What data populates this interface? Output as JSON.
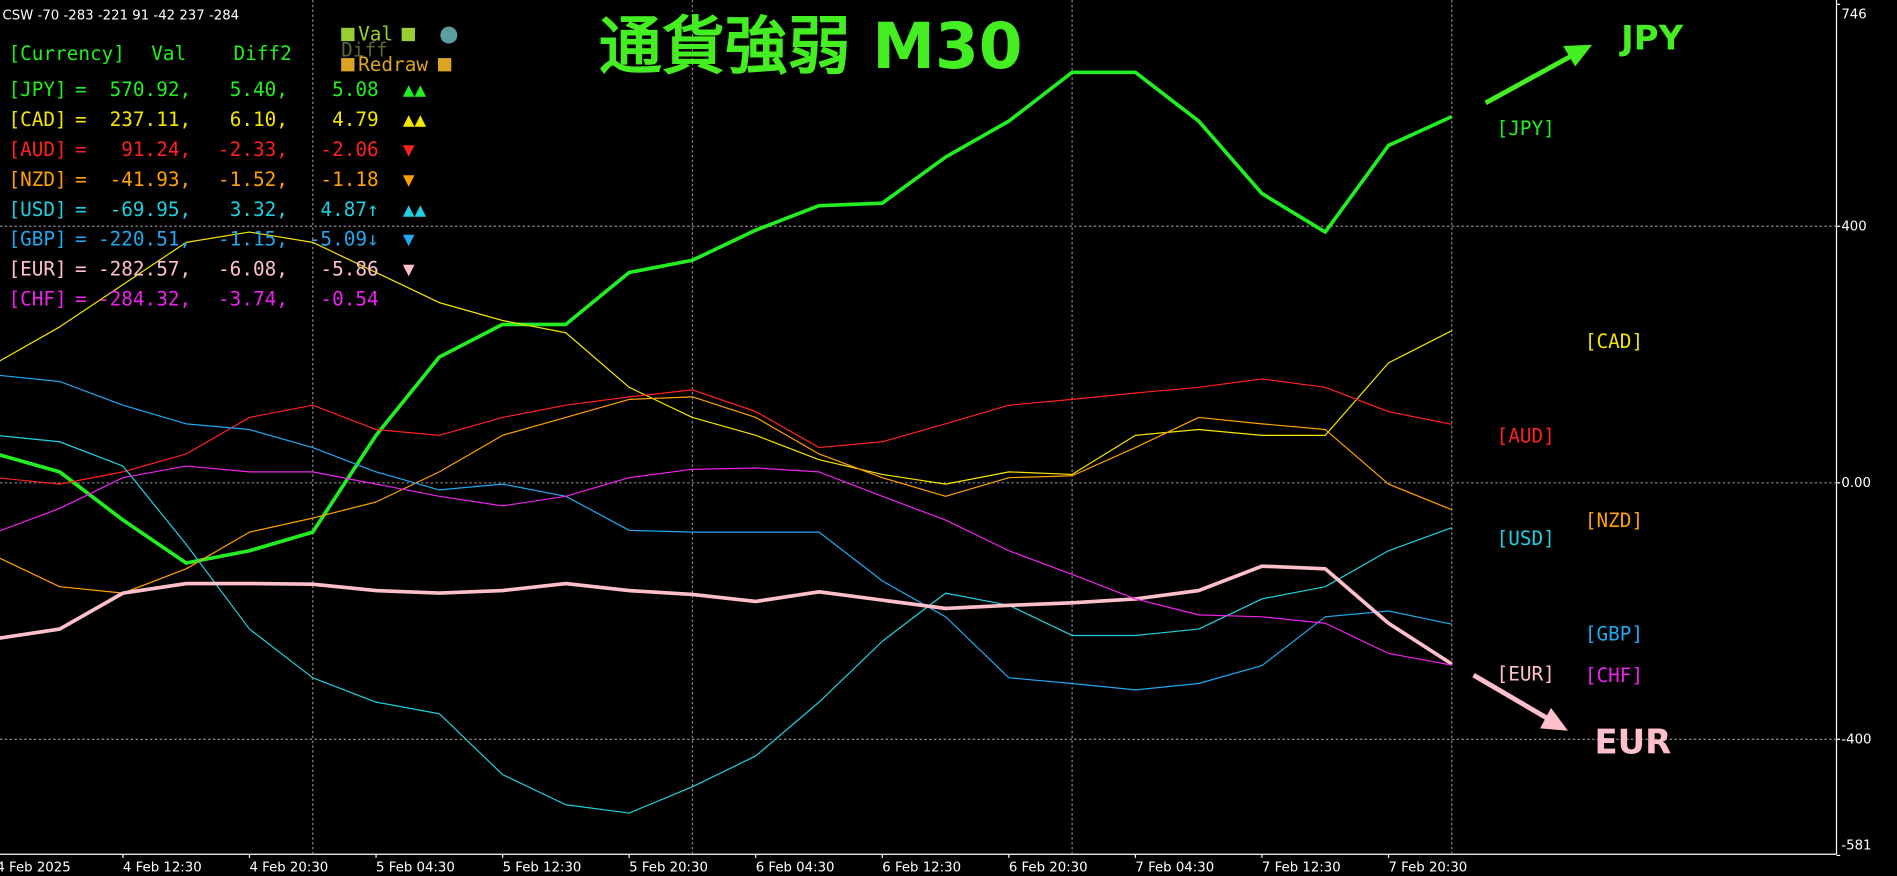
{
  "header": {
    "indicator": "CSW -70 -283 -221 91 -42 237 -284"
  },
  "buttons": {
    "val": "Val",
    "diff": "Diff",
    "redraw": "Redraw"
  },
  "table": {
    "columns": [
      "[Currency]",
      "Val",
      "Diff2"
    ],
    "rows": [
      [
        "[JPY]",
        "=",
        "570.92,",
        "5.40,",
        "5.08",
        "▲▲"
      ],
      [
        "[CAD]",
        "=",
        "237.11,",
        "6.10,",
        "4.79",
        "▲▲"
      ],
      [
        "[AUD]",
        "=",
        "91.24,",
        "-2.33,",
        "-2.06",
        "▼"
      ],
      [
        "[NZD]",
        "=",
        "-41.93,",
        "-1.52,",
        "-1.18",
        "▼"
      ],
      [
        "[USD]",
        "=",
        "-69.95,",
        "3.32,",
        "4.87↑",
        "▲▲"
      ],
      [
        "[GBP]",
        "=",
        "-220.51,",
        "-1.15,",
        "-5.09↓",
        "▼"
      ],
      [
        "[EUR]",
        "=",
        "-282.57,",
        "-6.08,",
        "-5.86",
        "▼"
      ],
      [
        "[CHF]",
        "=",
        "-284.32,",
        "-3.74,",
        "-0.54",
        ""
      ]
    ]
  },
  "chart_data": {
    "type": "line",
    "title": "通貨強弱  M30",
    "categories": [
      "4 Feb 2025",
      null,
      "4 Feb 12:30",
      null,
      "4 Feb 20:30",
      null,
      "5 Feb 04:30",
      null,
      "5 Feb 12:30",
      null,
      "5 Feb 20:30",
      null,
      "6 Feb 04:30",
      null,
      "6 Feb 12:30",
      null,
      "6 Feb 20:30",
      null,
      "7 Feb 04:30",
      null,
      "7 Feb 12:30",
      null,
      "7 Feb 20:30",
      null
    ],
    "series": [
      {
        "name": "[JPY]",
        "color": "#22ee22",
        "line_width": 3,
        "values": [
          45,
          17,
          -58,
          -125,
          -106,
          -77,
          74,
          196,
          247,
          247,
          328,
          347,
          394,
          432,
          436,
          508,
          564,
          640,
          640,
          564,
          451,
          391,
          526,
          570.92
        ]
      },
      {
        "name": "[CAD]",
        "color": "#f2e600",
        "line_width": 1,
        "values": [
          187,
          243,
          309,
          375,
          391,
          375,
          328,
          281,
          253,
          234,
          149,
          102,
          74,
          36,
          13,
          -2,
          17,
          13,
          74,
          83,
          74,
          74,
          187,
          237.11
        ]
      },
      {
        "name": "[AUD]",
        "color": "#ff2020",
        "line_width": 1,
        "values": [
          8,
          -2,
          17,
          45,
          102,
          121,
          83,
          74,
          102,
          121,
          134,
          145,
          111,
          55,
          64,
          92,
          121,
          130,
          140,
          149,
          162,
          149,
          111,
          91.24
        ]
      },
      {
        "name": "[NZD]",
        "color": "#ffa000",
        "line_width": 1,
        "values": [
          -115,
          -162,
          -172,
          -134,
          -77,
          -55,
          -30,
          17,
          74,
          102,
          130,
          134,
          102,
          45,
          8,
          -21,
          8,
          11,
          55,
          102,
          92,
          83,
          -2,
          -41.93
        ]
      },
      {
        "name": "[USD]",
        "color": "#20d0e0",
        "line_width": 1,
        "values": [
          74,
          64,
          26,
          -96,
          -228,
          -304,
          -342,
          -360,
          -455,
          -502,
          -515,
          -474,
          -426,
          -342,
          -247,
          -172,
          -191,
          -238,
          -238,
          -228,
          -181,
          -162,
          -106,
          -69.95
        ]
      },
      {
        "name": "[GBP]",
        "color": "#20a8f0",
        "line_width": 1,
        "values": [
          168,
          158,
          121,
          92,
          83,
          55,
          17,
          -11,
          -2,
          -21,
          -74,
          -77,
          -77,
          -77,
          -153,
          -209,
          -304,
          -313,
          -323,
          -313,
          -285,
          -209,
          -200,
          -220.51
        ]
      },
      {
        "name": "[EUR]",
        "color": "#ffc0cb",
        "line_width": 3,
        "values": [
          -243,
          -228,
          -172,
          -157,
          -157,
          -158,
          -168,
          -172,
          -168,
          -157,
          -168,
          -174,
          -185,
          -170,
          -183,
          -196,
          -191,
          -187,
          -181,
          -168,
          -130,
          -134,
          -219,
          -282.57
        ]
      },
      {
        "name": "[CHF]",
        "color": "#ee22ee",
        "line_width": 1,
        "values": [
          -77,
          -40,
          8,
          26,
          17,
          17,
          -2,
          -21,
          -36,
          -21,
          8,
          21,
          23,
          17,
          -21,
          -58,
          -106,
          -143,
          -181,
          -206,
          -209,
          -219,
          -266,
          -284.32
        ]
      }
    ],
    "ylim": [
      -581,
      746
    ],
    "yticks": [
      746,
      400,
      {
        "value": 0,
        "label": "0.00"
      },
      -400,
      -581
    ],
    "grid": true,
    "annotations": [
      {
        "text": "JPY",
        "color": "#44ee22"
      },
      {
        "text": "EUR",
        "color": "#ffc0cb"
      }
    ]
  }
}
